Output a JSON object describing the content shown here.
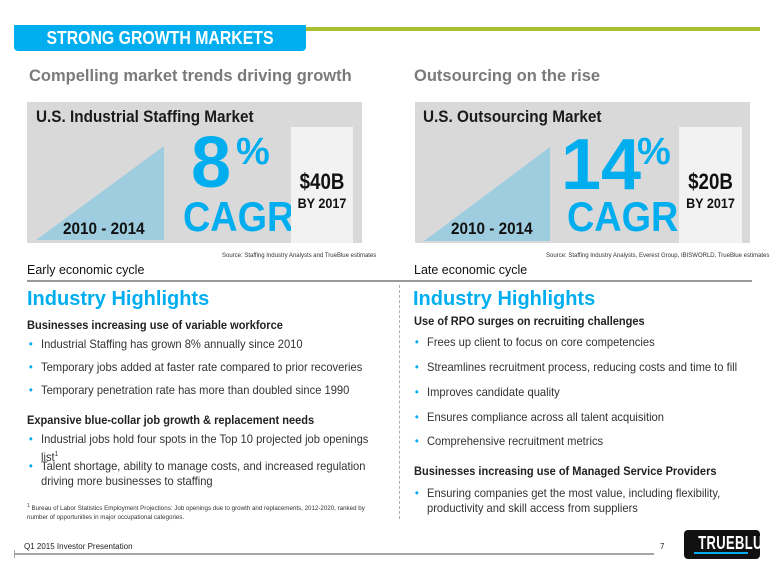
{
  "header": {
    "banner_title": "STRONG GROWTH MARKETS"
  },
  "colors": {
    "brand_blue": "#00aeef",
    "accent_green": "#a8bf2f",
    "triangle_blue": "#9fcde0"
  },
  "left": {
    "subheading": "Compelling market trends driving growth",
    "market": {
      "title": "U.S. Industrial Staffing Market",
      "years": "2010 - 2014",
      "cagr_value": "8",
      "cagr_percent": "%",
      "cagr_label": "CAGR",
      "size_amount": "$40B",
      "size_by": "BY 2017",
      "source": "Source:  Staffing Industry Analysts and TrueBlue estimates"
    },
    "cycle": "Early economic cycle",
    "highlights_title": "Industry Highlights",
    "sections": [
      {
        "heading": "Businesses increasing use of variable workforce",
        "bullets": [
          "Industrial Staffing has grown 8% annually since 2010",
          "Temporary jobs added at faster rate compared to prior recoveries",
          "Temporary penetration rate has more than doubled since 1990"
        ]
      },
      {
        "heading": "Expansive blue-collar job growth & replacement needs",
        "bullets": [
          "Industrial jobs hold four spots in the Top 10 projected job openings list",
          "Talent shortage, ability to manage costs, and increased regulation driving more businesses to staffing"
        ],
        "footnote_mark": "1"
      }
    ],
    "footnote": {
      "mark": "1",
      "text": " Bureau of Labor Statistics Employment Projections: Job openings due to growth and replacements, 2012-2020, ranked by number of opportunities in major occupational categories."
    }
  },
  "right": {
    "subheading": "Outsourcing on the rise",
    "market": {
      "title": "U.S. Outsourcing Market",
      "years": "2010 - 2014",
      "cagr_value": "14",
      "cagr_percent": "%",
      "cagr_label": "CAGR",
      "size_amount": "$20B",
      "size_by": "BY 2017",
      "source": "Source:  Staffing Industry Analysts, Everest Group, IBISWORLD, TrueBlue estimates"
    },
    "cycle": "Late economic cycle",
    "highlights_title": "Industry Highlights",
    "sections": [
      {
        "heading": "Use of RPO surges on recruiting challenges",
        "bullets": [
          "Frees up client to focus on core competencies",
          "Streamlines recruitment process, reducing costs and time to fill",
          "Improves candidate quality",
          "Ensures compliance across all talent acquisition",
          "Comprehensive recruitment metrics"
        ]
      },
      {
        "heading": "Businesses increasing use of Managed Service Providers",
        "bullets": [
          "Ensuring companies get the most value, including flexibility, productivity and skill access from suppliers"
        ]
      }
    ]
  },
  "footer": {
    "presentation": "Q1 2015 Investor Presentation",
    "page_number": "7",
    "logo_text": "TRUEBLUE"
  }
}
